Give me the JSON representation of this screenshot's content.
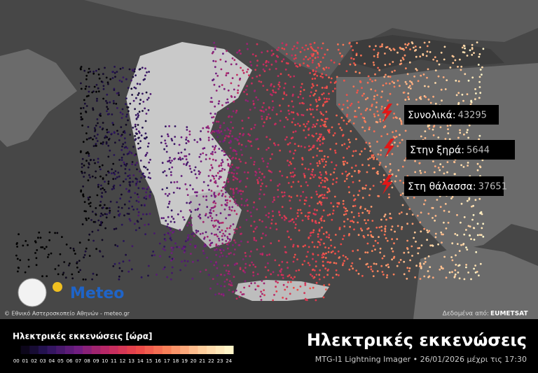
{
  "stats": [
    {
      "label": "Συνολικά:",
      "value": 43295
    },
    {
      "label": "Στην ξηρά:",
      "value": 5644
    },
    {
      "label": "Στη θάλασσα:",
      "value": 37651
    }
  ],
  "credits": {
    "copyright": "© Εθνικό Αστεροσκοπείο Αθηνών - meteo.gr",
    "source_label": "Δεδομένα από:",
    "source": "EUMETSAT",
    "logo": "Meteo"
  },
  "legend": {
    "title": "Ηλεκτρικές εκκενώσεις [ώρα]",
    "hours": [
      "00",
      "01",
      "02",
      "03",
      "04",
      "05",
      "06",
      "07",
      "08",
      "09",
      "10",
      "11",
      "12",
      "13",
      "14",
      "15",
      "16",
      "17",
      "18",
      "19",
      "20",
      "21",
      "22",
      "23",
      "24"
    ]
  },
  "footer": {
    "title": "Ηλεκτρικές εκκενώσεις",
    "subtitle": "MTG-I1 Lightning Imager • 26/01/2026 μέχρι τις 17:30"
  }
}
